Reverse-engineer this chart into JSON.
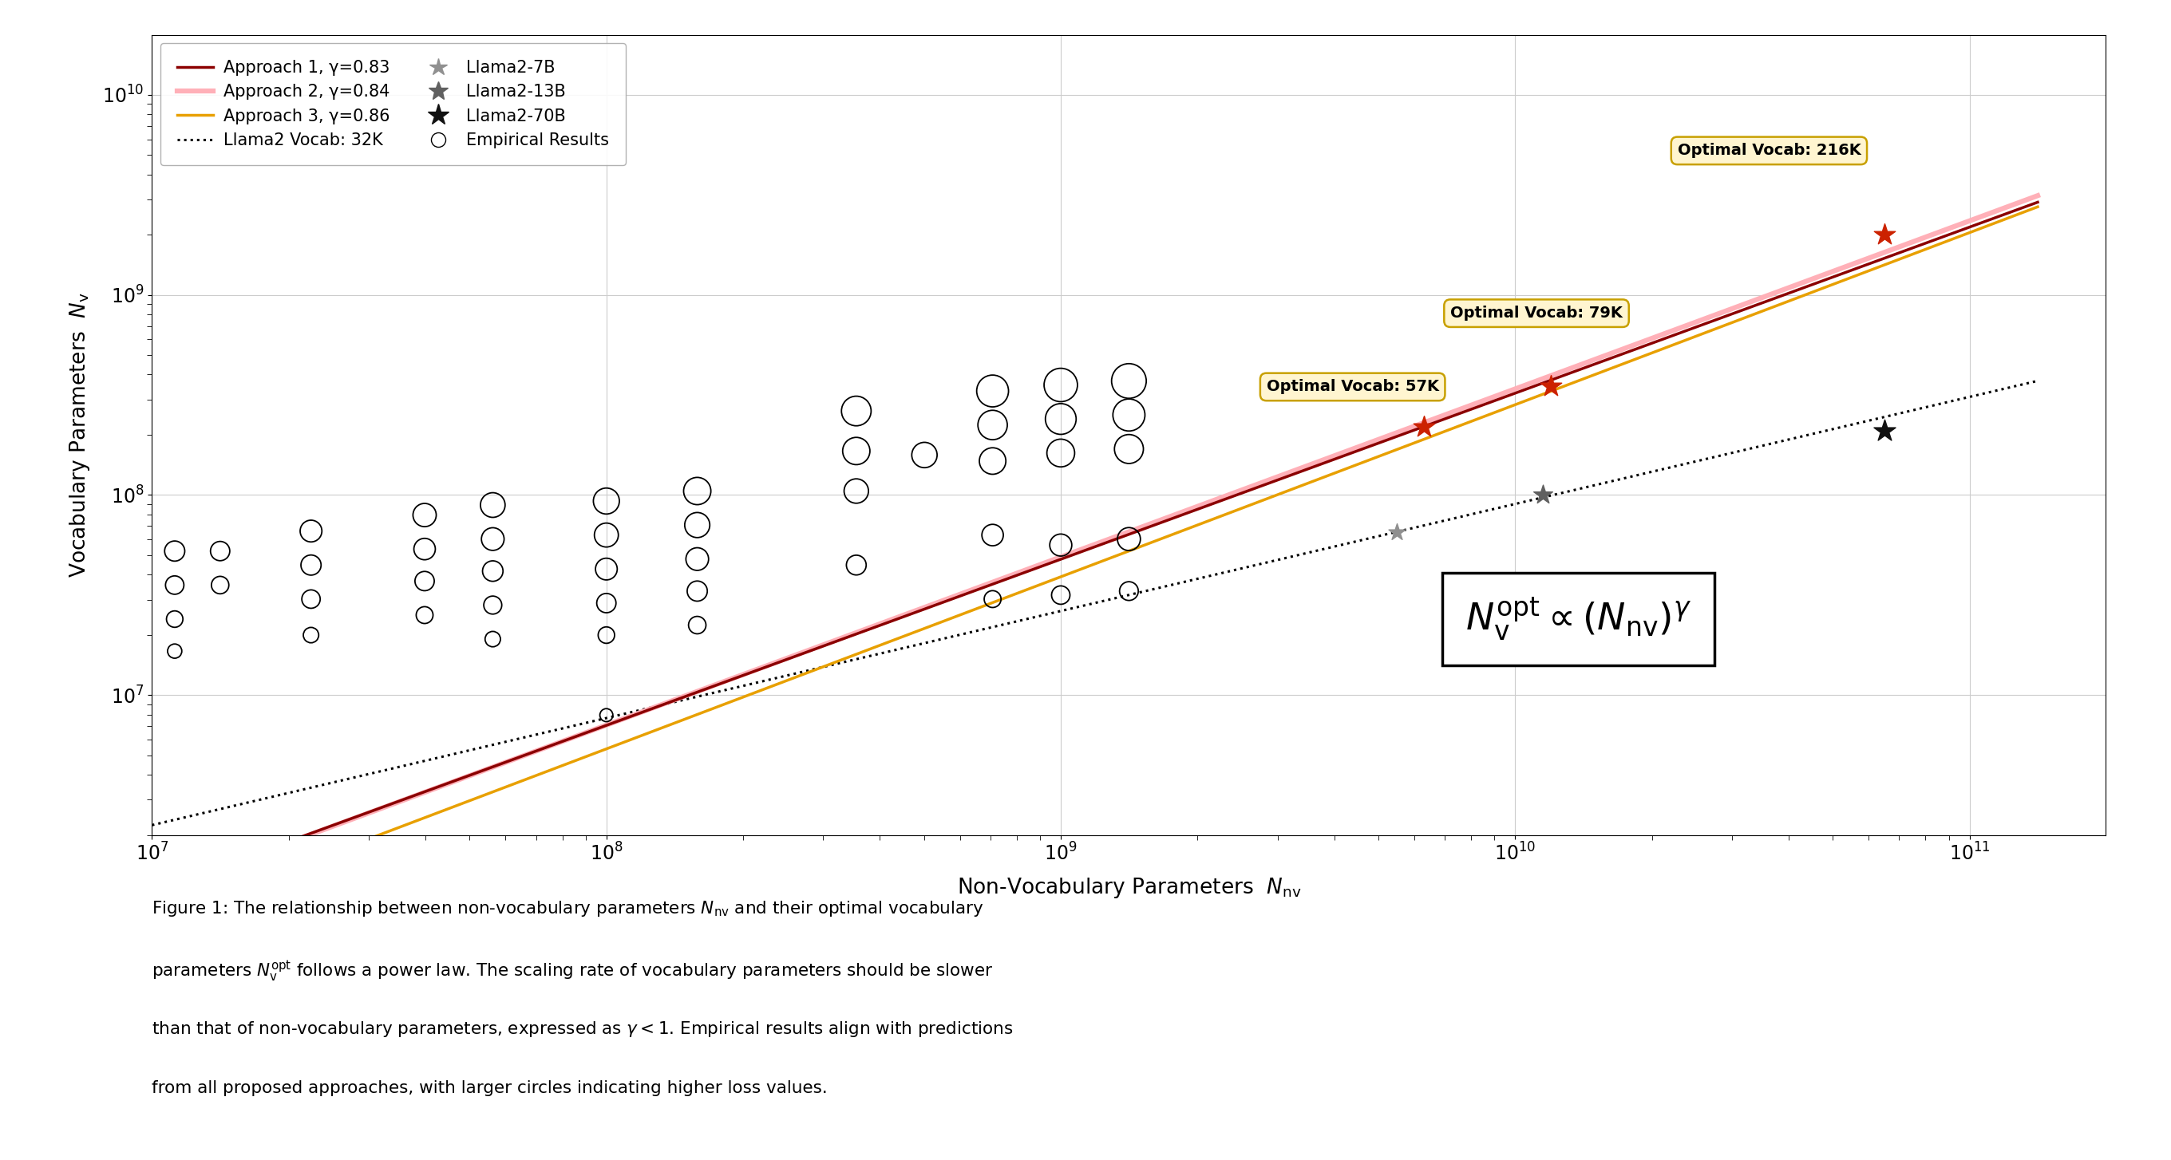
{
  "xlabel": "Non-Vocabulary Parameters  $N_{\\mathrm{nv}}$",
  "ylabel": "Vocabulary Parameters  $N_{\\mathrm{v}}$",
  "xlim_log": [
    7.0,
    11.3
  ],
  "ylim_log": [
    6.3,
    10.3
  ],
  "approach1": {
    "gamma": 0.83,
    "color": "#8B0000",
    "label": "Approach 1, γ=0.83",
    "lw": 2.5
  },
  "approach2": {
    "gamma": 0.84,
    "color": "#FFB0B8",
    "label": "Approach 2, γ=0.84",
    "lw": 4.5
  },
  "approach3": {
    "gamma": 0.86,
    "color": "#E8A000",
    "label": "Approach 3, γ=0.86",
    "lw": 2.5
  },
  "llama2_vocab_gamma": 0.535,
  "llama2_vocab_intercept_log": -0.72,
  "llama2_vocab_label": "Llama2 Vocab: 32K",
  "approach_ref_x_log": 9.81,
  "approach_ref_y1_log": 8.15,
  "approach_ref_y2_log": 8.18,
  "approach_ref_y3_log": 8.1,
  "llama2_7b": {
    "nnv": 5500000000.0,
    "nv": 65536000.0,
    "label": "Llama2-7B",
    "color": "#909090",
    "size": 250
  },
  "llama2_13b": {
    "nnv": 11500000000.0,
    "nv": 100000000.0,
    "label": "Llama2-13B",
    "color": "#606060",
    "size": 320
  },
  "llama2_70b": {
    "nnv": 65000000000.0,
    "nv": 210000000.0,
    "label": "Llama2-70B",
    "color": "#111111",
    "size": 420
  },
  "optimal_points": [
    {
      "nnv": 6300000000.0,
      "nv": 220000000.0,
      "label": "Optimal Vocab: 57K",
      "color": "#CC2200"
    },
    {
      "nnv": 12000000000.0,
      "nv": 350000000.0,
      "label": "Optimal Vocab: 79K",
      "color": "#CC2200"
    },
    {
      "nnv": 65000000000.0,
      "nv": 2000000000.0,
      "label": "Optimal Vocab: 216K",
      "color": "#CC2200"
    }
  ],
  "empirical_circles": [
    {
      "x_log": 7.05,
      "y_log": 7.72,
      "s": 60
    },
    {
      "x_log": 7.05,
      "y_log": 7.55,
      "s": 50
    },
    {
      "x_log": 7.05,
      "y_log": 7.38,
      "s": 40
    },
    {
      "x_log": 7.05,
      "y_log": 7.22,
      "s": 30
    },
    {
      "x_log": 7.15,
      "y_log": 7.72,
      "s": 55
    },
    {
      "x_log": 7.15,
      "y_log": 7.55,
      "s": 45
    },
    {
      "x_log": 7.35,
      "y_log": 7.82,
      "s": 70
    },
    {
      "x_log": 7.35,
      "y_log": 7.65,
      "s": 60
    },
    {
      "x_log": 7.35,
      "y_log": 7.48,
      "s": 50
    },
    {
      "x_log": 7.35,
      "y_log": 7.3,
      "s": 35
    },
    {
      "x_log": 7.6,
      "y_log": 7.9,
      "s": 80
    },
    {
      "x_log": 7.6,
      "y_log": 7.73,
      "s": 68
    },
    {
      "x_log": 7.6,
      "y_log": 7.57,
      "s": 55
    },
    {
      "x_log": 7.6,
      "y_log": 7.4,
      "s": 42
    },
    {
      "x_log": 7.75,
      "y_log": 7.95,
      "s": 90
    },
    {
      "x_log": 7.75,
      "y_log": 7.78,
      "s": 76
    },
    {
      "x_log": 7.75,
      "y_log": 7.62,
      "s": 62
    },
    {
      "x_log": 7.75,
      "y_log": 7.45,
      "s": 48
    },
    {
      "x_log": 7.75,
      "y_log": 7.28,
      "s": 35
    },
    {
      "x_log": 8.0,
      "y_log": 7.97,
      "s": 100
    },
    {
      "x_log": 8.0,
      "y_log": 7.8,
      "s": 85
    },
    {
      "x_log": 8.0,
      "y_log": 7.63,
      "s": 70
    },
    {
      "x_log": 8.0,
      "y_log": 7.46,
      "s": 55
    },
    {
      "x_log": 8.0,
      "y_log": 7.3,
      "s": 40
    },
    {
      "x_log": 8.0,
      "y_log": 6.9,
      "s": 25
    },
    {
      "x_log": 8.2,
      "y_log": 8.02,
      "s": 110
    },
    {
      "x_log": 8.2,
      "y_log": 7.85,
      "s": 93
    },
    {
      "x_log": 8.2,
      "y_log": 7.68,
      "s": 76
    },
    {
      "x_log": 8.2,
      "y_log": 7.52,
      "s": 60
    },
    {
      "x_log": 8.2,
      "y_log": 7.35,
      "s": 45
    },
    {
      "x_log": 8.55,
      "y_log": 8.42,
      "s": 130
    },
    {
      "x_log": 8.55,
      "y_log": 8.22,
      "s": 110
    },
    {
      "x_log": 8.55,
      "y_log": 8.02,
      "s": 88
    },
    {
      "x_log": 8.55,
      "y_log": 7.65,
      "s": 58
    },
    {
      "x_log": 8.7,
      "y_log": 8.2,
      "s": 95
    },
    {
      "x_log": 8.85,
      "y_log": 8.52,
      "s": 150
    },
    {
      "x_log": 8.85,
      "y_log": 8.35,
      "s": 128
    },
    {
      "x_log": 8.85,
      "y_log": 8.17,
      "s": 104
    },
    {
      "x_log": 8.85,
      "y_log": 7.8,
      "s": 68
    },
    {
      "x_log": 8.85,
      "y_log": 7.48,
      "s": 42
    },
    {
      "x_log": 9.0,
      "y_log": 8.55,
      "s": 165
    },
    {
      "x_log": 9.0,
      "y_log": 8.38,
      "s": 140
    },
    {
      "x_log": 9.0,
      "y_log": 8.21,
      "s": 114
    },
    {
      "x_log": 9.0,
      "y_log": 7.75,
      "s": 72
    },
    {
      "x_log": 9.0,
      "y_log": 7.5,
      "s": 50
    },
    {
      "x_log": 9.15,
      "y_log": 8.57,
      "s": 178
    },
    {
      "x_log": 9.15,
      "y_log": 8.4,
      "s": 152
    },
    {
      "x_log": 9.15,
      "y_log": 8.23,
      "s": 124
    },
    {
      "x_log": 9.15,
      "y_log": 7.78,
      "s": 78
    },
    {
      "x_log": 9.15,
      "y_log": 7.52,
      "s": 52
    }
  ],
  "caption": "Figure 1: The relationship between non-vocabulary parameters $N_{\\mathrm{nv}}$ and their optimal vocabulary\nparameters $N_{\\mathrm{v}}^{\\mathrm{opt}}$ follows a power law. The scaling rate of vocabulary parameters should be slower\nthan that of non-vocabulary parameters, expressed as $\\gamma < 1$. Empirical results align with predictions\nfrom all proposed approaches, with larger circles indicating higher loss values.",
  "formula": "$N_{\\mathrm{v}}^{\\mathrm{opt}} \\propto (N_{\\mathrm{nv}})^{\\gamma}$"
}
